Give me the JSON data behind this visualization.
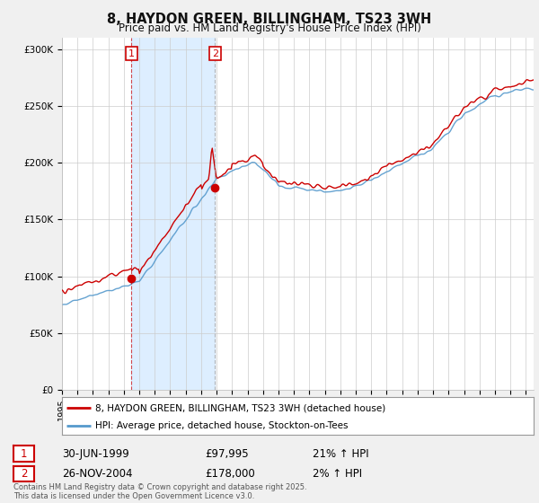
{
  "title": "8, HAYDON GREEN, BILLINGHAM, TS23 3WH",
  "subtitle": "Price paid vs. HM Land Registry's House Price Index (HPI)",
  "legend_line1": "8, HAYDON GREEN, BILLINGHAM, TS23 3WH (detached house)",
  "legend_line2": "HPI: Average price, detached house, Stockton-on-Tees",
  "annotation1_date": "30-JUN-1999",
  "annotation1_price": "£97,995",
  "annotation1_hpi": "21% ↑ HPI",
  "annotation1_year": 1999.5,
  "annotation1_value": 97995,
  "annotation2_date": "26-NOV-2004",
  "annotation2_price": "£178,000",
  "annotation2_hpi": "2% ↑ HPI",
  "annotation2_year": 2004.9,
  "annotation2_value": 178000,
  "yticks": [
    0,
    50000,
    100000,
    150000,
    200000,
    250000,
    300000
  ],
  "ytick_labels": [
    "£0",
    "£50K",
    "£100K",
    "£150K",
    "£200K",
    "£250K",
    "£300K"
  ],
  "copyright_text": "Contains HM Land Registry data © Crown copyright and database right 2025.\nThis data is licensed under the Open Government Licence v3.0.",
  "bg_color": "#f0f0f0",
  "plot_bg_color": "#ffffff",
  "red_color": "#cc0000",
  "blue_color": "#5599cc",
  "shaded_color": "#ddeeff",
  "ann1_box_color": "#cc0000",
  "ann2_box_color": "#cc0000",
  "xmin": 1995,
  "xmax": 2025.5,
  "ymin": 0,
  "ymax": 310000
}
